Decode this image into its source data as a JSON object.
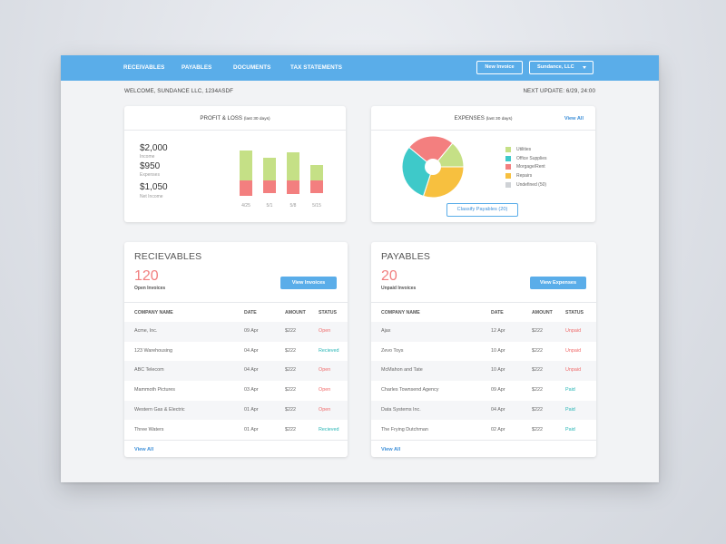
{
  "nav": {
    "items": [
      "RECEIVABLES",
      "PAYABLES",
      "DOCUMENTS",
      "TAX STATEMENTS"
    ],
    "new_invoice": "New Invoice",
    "company": "Sundance, LLC"
  },
  "welcome": "WELCOME, SUNDANCE LLC, 1234ASDF",
  "next_update": "NEXT UPDATE: 6/29, 24:00",
  "pnl": {
    "title": "PROFIT & LOSS",
    "title_note": "(last 30 days)",
    "income_value": "$2,000",
    "income_label": "Income",
    "expenses_value": "$950",
    "expenses_label": "Expenses",
    "net_value": "$1,050",
    "net_label": "Net Income",
    "colors": {
      "income": "#c5e086",
      "expenses": "#f37f7f"
    }
  },
  "chart_data": [
    {
      "type": "bar",
      "categories": [
        "4/25",
        "5/1",
        "5/8",
        "5/15"
      ],
      "series": [
        {
          "values": [
            33,
            25,
            31,
            17
          ]
        },
        {
          "values": [
            -17,
            -14,
            -15,
            -14
          ]
        }
      ],
      "ylim": [
        -20,
        35
      ],
      "colors": [
        "#c5e086",
        "#f37f7f"
      ]
    },
    {
      "type": "pie",
      "title": "EXPENSES",
      "title_note": "(last 30 days)",
      "labels": [
        "Utilities",
        "Office Supplies",
        "Morgage/Rent",
        "Repairs",
        "Undefined (50)"
      ],
      "values": [
        14,
        31,
        25,
        30,
        0
      ],
      "colors": [
        "#c5e086",
        "#3ec9c9",
        "#f37f7f",
        "#f7c03f",
        "#cfd2d6"
      ]
    }
  ],
  "expenses": {
    "view_all": "View All",
    "classify": "Classify Payables (20)"
  },
  "receivables": {
    "title": "RECIEVABLES",
    "count": "120",
    "count_label": "Open Invoices",
    "button": "View Invoices",
    "columns": [
      "COMPANY NAME",
      "DATE",
      "AMOUNT",
      "STATUS"
    ],
    "rows": [
      [
        "Acme, Inc.",
        "09 Apr",
        "$222",
        "Open"
      ],
      [
        "123 Warehousing",
        "04 Apr",
        "$222",
        "Recieved"
      ],
      [
        "ABC Telecom",
        "04 Apr",
        "$222",
        "Open"
      ],
      [
        "Mammoth Pictures",
        "03 Apr",
        "$222",
        "Open"
      ],
      [
        "Western Gas & Electric",
        "01 Apr",
        "$222",
        "Open"
      ],
      [
        "Three Waters",
        "01 Apr",
        "$222",
        "Recieved"
      ]
    ],
    "view_all": "View All"
  },
  "payables": {
    "title": "PAYABLES",
    "count": "20",
    "count_label": "Unpaid Invoices",
    "button": "View Expenses",
    "columns": [
      "COMPANY NAME",
      "DATE",
      "AMOUNT",
      "STATUS"
    ],
    "rows": [
      [
        "Ajax",
        "12 Apr",
        "$222",
        "Unpaid"
      ],
      [
        "Zevo Toys",
        "10 Apr",
        "$222",
        "Unpaid"
      ],
      [
        "McMahon and Tate",
        "10 Apr",
        "$222",
        "Unpaid"
      ],
      [
        "Charles Townsend Agency",
        "09 Apr",
        "$222",
        "Paid"
      ],
      [
        "Data Systems Inc.",
        "04 Apr",
        "$222",
        "Paid"
      ],
      [
        "The Frying Dutchman",
        "02 Apr",
        "$222",
        "Paid"
      ]
    ],
    "view_all": "View All"
  }
}
